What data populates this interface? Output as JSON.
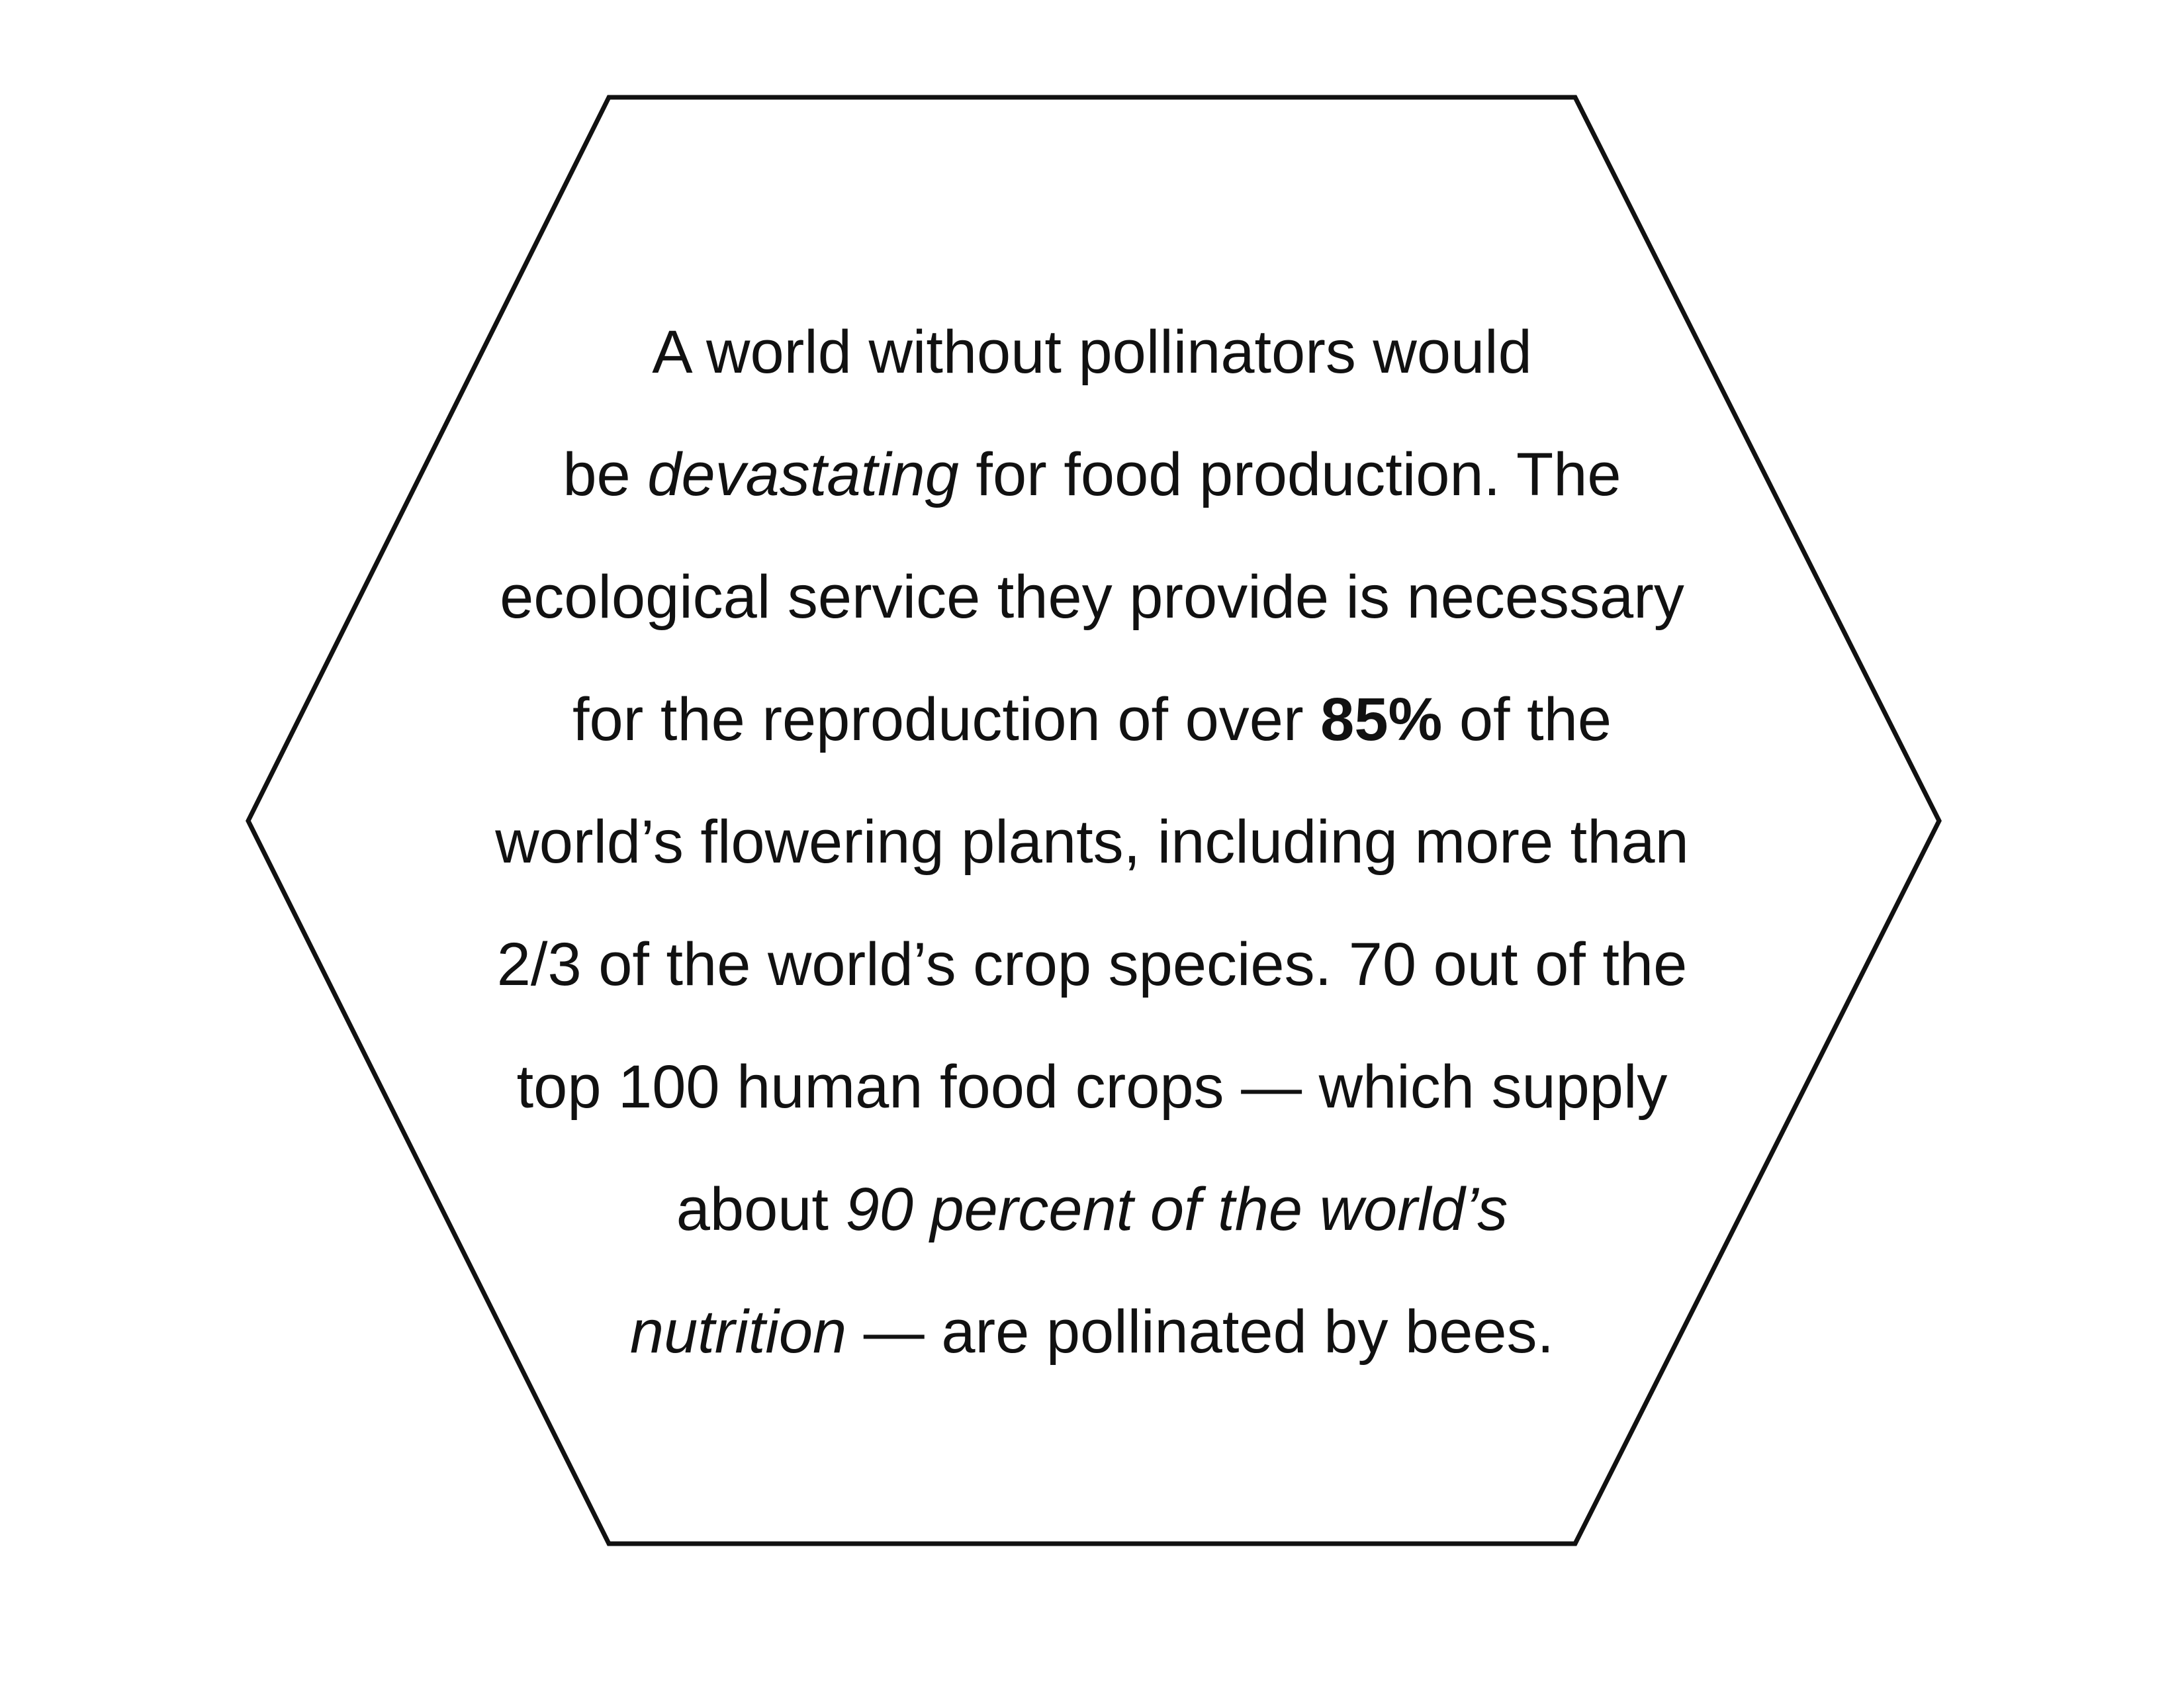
{
  "paragraph": {
    "lines": [
      [
        {
          "text": "A world without pollinators would",
          "style": "normal"
        }
      ],
      [
        {
          "text": "be ",
          "style": "normal"
        },
        {
          "text": "devastating",
          "style": "italic"
        },
        {
          "text": " for food production. The",
          "style": "normal"
        }
      ],
      [
        {
          "text": "ecological service they provide is necessary",
          "style": "normal"
        }
      ],
      [
        {
          "text": "for the reproduction of over ",
          "style": "normal"
        },
        {
          "text": "85%",
          "style": "bold"
        },
        {
          "text": " of the",
          "style": "normal"
        }
      ],
      [
        {
          "text": "world’s flowering plants, including more than",
          "style": "normal"
        }
      ],
      [
        {
          "text": "2/3 of the world’s crop species. 70 out of the",
          "style": "normal"
        }
      ],
      [
        {
          "text": "top 100 human food crops — which supply",
          "style": "normal"
        }
      ],
      [
        {
          "text": "about ",
          "style": "normal"
        },
        {
          "text": "90 percent of the world’s",
          "style": "italic"
        }
      ],
      [
        {
          "text": "nutrition",
          "style": "italic"
        },
        {
          "text": " — are pollinated by bees.",
          "style": "normal"
        }
      ]
    ]
  },
  "colors": {
    "text": "#111111",
    "hexagon_stroke": "#111111",
    "background": "#ffffff"
  }
}
